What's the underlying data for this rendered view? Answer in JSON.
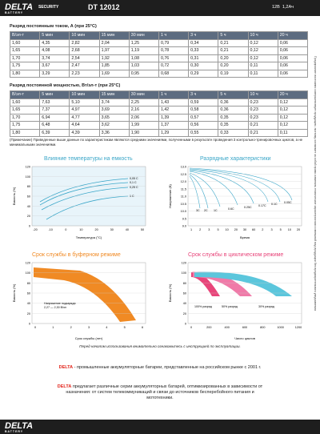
{
  "header": {
    "brand": "DELTA",
    "brand_sub": "BATTERY",
    "partner": "SECURITY",
    "model": "DT 12012",
    "spec": "12В  1,2Ач"
  },
  "table_current": {
    "title": "Разряд постоянным током, А (при 25°С)",
    "columns": [
      "В/эл-т",
      "5 мин",
      "10 мин",
      "15 мин",
      "30 мин",
      "1 ч",
      "3 ч",
      "5 ч",
      "10 ч",
      "20 ч"
    ],
    "rows": [
      [
        "1,60",
        "4,35",
        "2,82",
        "2,04",
        "1,25",
        "0,79",
        "0,34",
        "0,21",
        "0,12",
        "0,06"
      ],
      [
        "1,65",
        "4,08",
        "2,68",
        "1,97",
        "1,19",
        "0,78",
        "0,33",
        "0,21",
        "0,12",
        "0,06"
      ],
      [
        "1,70",
        "3,74",
        "2,54",
        "1,92",
        "1,08",
        "0,76",
        "0,31",
        "0,20",
        "0,12",
        "0,06"
      ],
      [
        "1,75",
        "3,67",
        "2,47",
        "1,85",
        "1,03",
        "0,72",
        "0,30",
        "0,20",
        "0,11",
        "0,06"
      ],
      [
        "1,80",
        "3,29",
        "2,23",
        "1,69",
        "0,95",
        "0,68",
        "0,29",
        "0,19",
        "0,11",
        "0,06"
      ]
    ]
  },
  "table_power": {
    "title": "Разряд постоянной мощностью, Вт/эл-т (при 25°С)",
    "columns": [
      "В/эл-т",
      "5 мин",
      "10 мин",
      "15 мин",
      "30 мин",
      "1 ч",
      "3 ч",
      "5 ч",
      "10 ч",
      "20 ч"
    ],
    "rows": [
      [
        "1,60",
        "7,63",
        "5,10",
        "3,74",
        "2,25",
        "1,43",
        "0,59",
        "0,36",
        "0,23",
        "0,12"
      ],
      [
        "1,65",
        "7,37",
        "4,97",
        "3,69",
        "2,16",
        "1,42",
        "0,58",
        "0,36",
        "0,23",
        "0,12"
      ],
      [
        "1,70",
        "6,94",
        "4,77",
        "3,65",
        "2,06",
        "1,39",
        "0,57",
        "0,35",
        "0,23",
        "0,12"
      ],
      [
        "1,75",
        "6,48",
        "4,64",
        "3,62",
        "1,99",
        "1,37",
        "0,56",
        "0,35",
        "0,21",
        "0,12"
      ],
      [
        "1,80",
        "6,39",
        "4,39",
        "3,36",
        "1,90",
        "1,29",
        "0,55",
        "0,33",
        "0,21",
        "0,11"
      ]
    ]
  },
  "note": "(Примечание) Приведенные выше данные по характеристикам являются средними значениями, полученными в результате проведения 3 контрольно-тренировочных циклов, а не минимальными значениями.",
  "side_note": "Предприятие постоянно совершенствует продукцию, поэтому оставляет за собой право изменять технические характеристики и внешний вид продукции без предварительного уведомления",
  "charts": [
    {
      "title": "Влияние температуры на емкость",
      "y_label": "Емкость (%)",
      "x_label": "Температура (°С)",
      "yticks": [
        "120",
        "100",
        "80",
        "60",
        "40",
        "20",
        "0"
      ],
      "xticks": [
        "-20",
        "-10",
        "0",
        "10",
        "20",
        "30",
        "40",
        "50"
      ],
      "labels": [
        "0,05 С",
        "0,1 С",
        "0,25 С",
        "1 С"
      ]
    },
    {
      "title": "Разрядные характеристики",
      "y_label": "Напряжение (В)",
      "x_label": "Время",
      "yticks": [
        "13.0",
        "12.5",
        "12.0",
        "11.5",
        "11.0",
        "10.5",
        "10.0",
        "9.5",
        "9.0"
      ],
      "xticks": [
        "1",
        "2",
        "3",
        "5",
        "10",
        "20",
        "30",
        "60",
        "2",
        "3",
        "5",
        "10",
        "20"
      ],
      "labels": [
        "3C",
        "2C",
        "1C",
        "0.6C",
        "0.25C",
        "0.17C",
        "0.1C",
        "0.05C"
      ]
    },
    {
      "title": "Срок службы в буферном режиме",
      "y_label": "Емкость (%)",
      "x_label": "Срок службы (лет)",
      "yticks": [
        "120",
        "100",
        "80",
        "60",
        "40",
        "20",
        "0"
      ],
      "xticks": [
        "0",
        "1",
        "2",
        "3",
        "4",
        "5",
        "6"
      ],
      "labels": [
        "Напряжение подзаряда",
        "2,27 — 2,30 В/эл"
      ]
    },
    {
      "title": "Срок службы в циклическом режиме",
      "y_label": "Емкость (%)",
      "x_label": "Число циклов",
      "yticks": [
        "120",
        "100",
        "80",
        "60",
        "40",
        "20",
        "0"
      ],
      "xticks": [
        "0",
        "200",
        "400",
        "600",
        "800",
        "1000",
        "1200"
      ],
      "labels": [
        "100% разряд",
        "50% разряд",
        "30% разряд"
      ]
    }
  ],
  "instruction": "Перед началом использования внимательно ознакомьтесь с инструкцией по эксплуатации.",
  "about": {
    "brand": "DELTA",
    "text": " - промышленные аккумуляторные батареи, представленные на российском рынке с 2001 г.",
    "brand2": "DELTA",
    "text2": " предлагает различные серии аккумуляторных батарей, оптимизированных в зависимости от назначения: от систем телекоммуникаций и связи до источников бесперебойного питания и мототехники."
  },
  "footer": {
    "brand": "DELTA",
    "brand_sub": "BATTERY"
  }
}
